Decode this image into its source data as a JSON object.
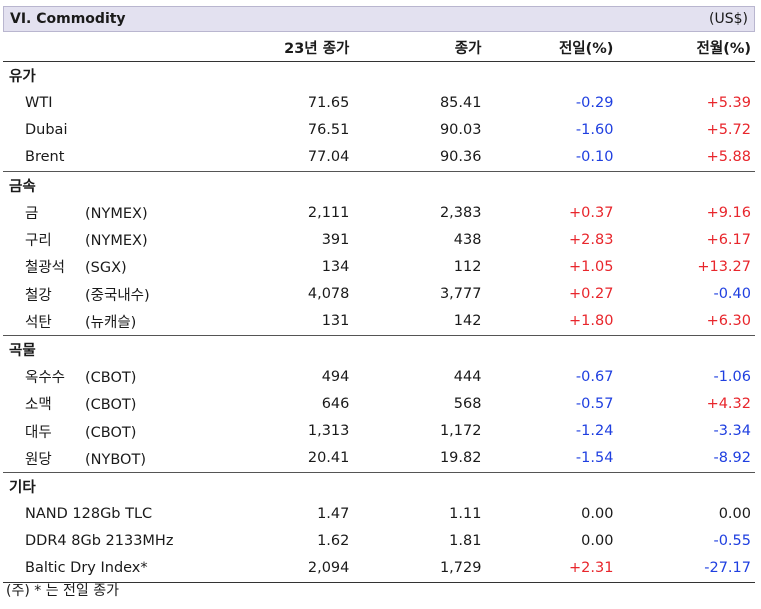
{
  "header": {
    "title": "VI. Commodity",
    "unit": "(US$)"
  },
  "columns": [
    "",
    "23년 종가",
    "종가",
    "전일(%)",
    "전월(%)"
  ],
  "sections": [
    {
      "name": "유가",
      "rows": [
        {
          "name": "WTI",
          "ex": "",
          "prev": "71.65",
          "close": "85.41",
          "d": "-0.29",
          "m": "+5.39"
        },
        {
          "name": "Dubai",
          "ex": "",
          "prev": "76.51",
          "close": "90.03",
          "d": "-1.60",
          "m": "+5.72"
        },
        {
          "name": "Brent",
          "ex": "",
          "prev": "77.04",
          "close": "90.36",
          "d": "-0.10",
          "m": "+5.88"
        }
      ]
    },
    {
      "name": "금속",
      "rows": [
        {
          "name": "금",
          "ex": "(NYMEX)",
          "prev": "2,111",
          "close": "2,383",
          "d": "+0.37",
          "m": "+9.16"
        },
        {
          "name": "구리",
          "ex": "(NYMEX)",
          "prev": "391",
          "close": "438",
          "d": "+2.83",
          "m": "+6.17"
        },
        {
          "name": "철광석",
          "ex": "(SGX)",
          "prev": "134",
          "close": "112",
          "d": "+1.05",
          "m": "+13.27"
        },
        {
          "name": "철강",
          "ex": "(중국내수)",
          "prev": "4,078",
          "close": "3,777",
          "d": "+0.27",
          "m": "-0.40"
        },
        {
          "name": "석탄",
          "ex": "(뉴캐슬)",
          "prev": "131",
          "close": "142",
          "d": "+1.80",
          "m": "+6.30"
        }
      ]
    },
    {
      "name": "곡물",
      "rows": [
        {
          "name": "옥수수",
          "ex": "(CBOT)",
          "prev": "494",
          "close": "444",
          "d": "-0.67",
          "m": "-1.06"
        },
        {
          "name": "소맥",
          "ex": "(CBOT)",
          "prev": "646",
          "close": "568",
          "d": "-0.57",
          "m": "+4.32"
        },
        {
          "name": "대두",
          "ex": "(CBOT)",
          "prev": "1,313",
          "close": "1,172",
          "d": "-1.24",
          "m": "-3.34"
        },
        {
          "name": "원당",
          "ex": "(NYBOT)",
          "prev": "20.41",
          "close": "19.82",
          "d": "-1.54",
          "m": "-8.92"
        }
      ]
    },
    {
      "name": "기타",
      "rows": [
        {
          "name": "NAND 128Gb TLC",
          "ex": "",
          "prev": "1.47",
          "close": "1.11",
          "d": "0.00",
          "m": "0.00"
        },
        {
          "name": "DDR4 8Gb 2133MHz",
          "ex": "",
          "prev": "1.62",
          "close": "1.81",
          "d": "0.00",
          "m": "-0.55"
        },
        {
          "name": "Baltic Dry Index*",
          "ex": "",
          "prev": "2,094",
          "close": "1,729",
          "d": "+2.31",
          "m": "-27.17"
        }
      ]
    }
  ],
  "footnote": "(주) * 는 전일 종가",
  "colors": {
    "positive": "#e8262c",
    "negative": "#1f3fe0",
    "header_bg": "#e3e1f0"
  }
}
